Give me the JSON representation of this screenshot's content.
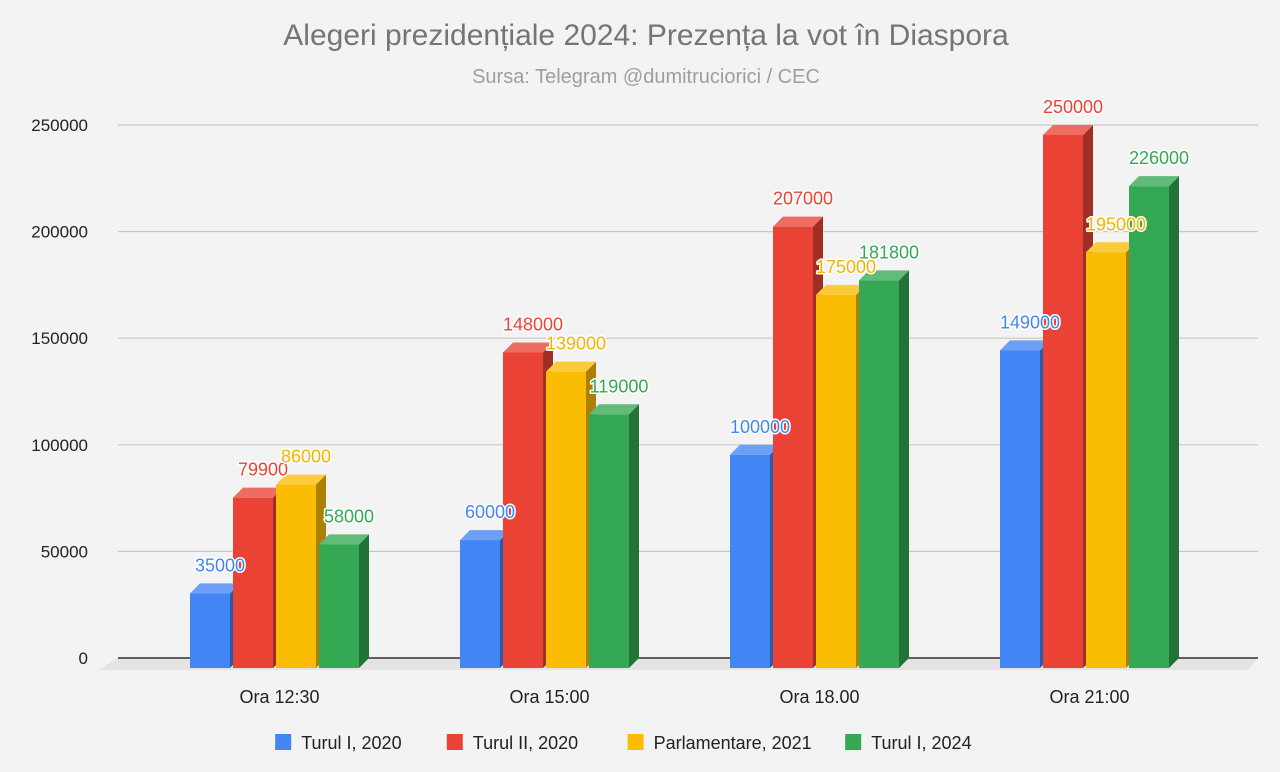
{
  "chart_data": {
    "type": "bar",
    "title": "Alegeri prezidențiale 2024: Prezența la vot în Diaspora",
    "subtitle": "Sursa: Telegram @dumitruciorici / CEC",
    "categories": [
      "Ora 12:30",
      "Ora 15:00",
      "Ora 18.00",
      "Ora 21:00"
    ],
    "series": [
      {
        "name": "Turul I, 2020",
        "color": "#4285F4",
        "labelColor": "#4285F4",
        "values": [
          35000,
          60000,
          100000,
          149000
        ]
      },
      {
        "name": "Turul II, 2020",
        "color": "#EA4335",
        "labelColor": "#EA4335",
        "values": [
          79900,
          148000,
          207000,
          250000
        ]
      },
      {
        "name": "Parlamentare, 2021",
        "color": "#FBBC04",
        "labelColor": "#F2B400",
        "values": [
          86000,
          139000,
          175000,
          195000
        ]
      },
      {
        "name": "Turul I, 2024",
        "color": "#34A853",
        "labelColor": "#34A853",
        "values": [
          58000,
          119000,
          181800,
          226000
        ]
      }
    ],
    "xlabel": "",
    "ylabel": "",
    "ylim": [
      0,
      250000
    ],
    "yticks": [
      0,
      50000,
      100000,
      150000,
      200000,
      250000
    ],
    "grid": true,
    "legend": "bottom",
    "data_labels": true
  }
}
